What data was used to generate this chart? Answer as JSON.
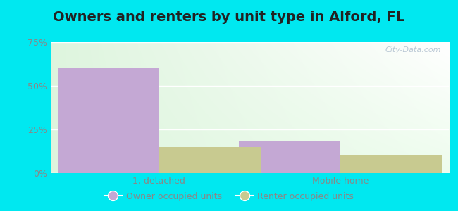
{
  "title": "Owners and renters by unit type in Alford, FL",
  "categories": [
    "1, detached",
    "Mobile home"
  ],
  "owner_values": [
    60.0,
    18.0
  ],
  "renter_values": [
    15.0,
    10.0
  ],
  "owner_color": "#c4a8d4",
  "renter_color": "#c8ca90",
  "ylim": [
    0,
    75
  ],
  "yticks": [
    0,
    25,
    50,
    75
  ],
  "ytick_labels": [
    "0%",
    "25%",
    "50%",
    "75%"
  ],
  "background_color": "#00e8f0",
  "bar_width": 0.28,
  "legend_owner": "Owner occupied units",
  "legend_renter": "Renter occupied units",
  "watermark": "City-Data.com",
  "title_fontsize": 14,
  "tick_fontsize": 9,
  "legend_fontsize": 9,
  "group_positions": [
    0.25,
    0.75
  ]
}
